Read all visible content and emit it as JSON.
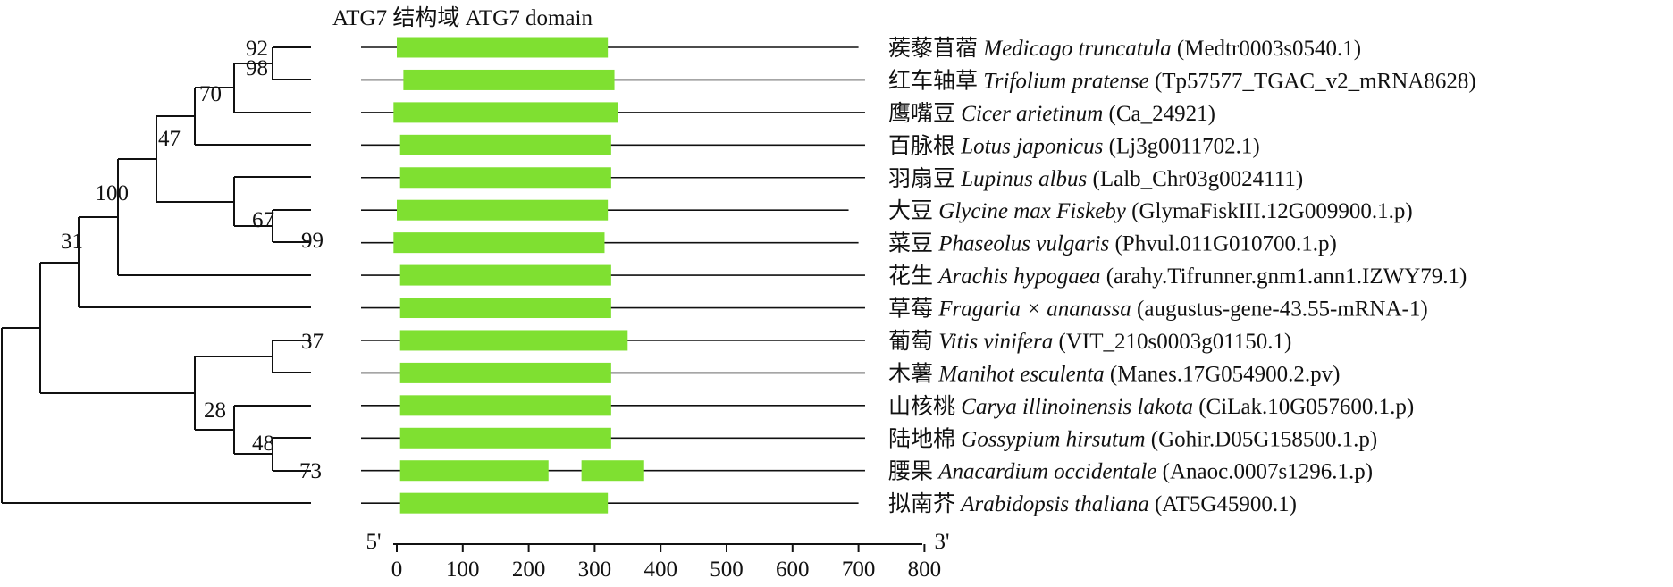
{
  "domain_title": "ATG7 结构域 ATG7 domain",
  "domain_color": "#7FE031",
  "axis": {
    "start_label": "5'",
    "end_label": "3'",
    "ticks": [
      "0",
      "100",
      "200",
      "300",
      "400",
      "500",
      "600",
      "700",
      "800"
    ]
  },
  "species": [
    {
      "cn": "蒺藜苜蓿",
      "latin": "Medicago truncatula",
      "gene": "(Medtr0003s0540.1)",
      "length": 700,
      "domains": [
        [
          0,
          320
        ]
      ]
    },
    {
      "cn": "红车轴草",
      "latin": "Trifolium pratense",
      "gene": "(Tp57577_TGAC_v2_mRNA8628)",
      "length": 710,
      "domains": [
        [
          10,
          330
        ]
      ]
    },
    {
      "cn": "鹰嘴豆",
      "latin": "Cicer arietinum",
      "gene": "(Ca_24921)",
      "length": 710,
      "domains": [
        [
          -5,
          335
        ]
      ]
    },
    {
      "cn": "百脉根",
      "latin": "Lotus japonicus",
      "gene": "(Lj3g0011702.1)",
      "length": 710,
      "domains": [
        [
          5,
          325
        ]
      ]
    },
    {
      "cn": "羽扇豆",
      "latin": "Lupinus albus",
      "gene": "(Lalb_Chr03g0024111)",
      "length": 710,
      "domains": [
        [
          5,
          325
        ]
      ]
    },
    {
      "cn": "大豆",
      "latin": "Glycine max Fiskeby",
      "gene": "(GlymaFiskIII.12G009900.1.p)",
      "length": 685,
      "domains": [
        [
          0,
          320
        ]
      ]
    },
    {
      "cn": "菜豆",
      "latin": "Phaseolus vulgaris",
      "gene": "(Phvul.011G010700.1.p)",
      "length": 700,
      "domains": [
        [
          -5,
          315
        ]
      ]
    },
    {
      "cn": "花生",
      "latin": "Arachis hypogaea",
      "gene": "(arahy.Tifrunner.gnm1.ann1.IZWY79.1)",
      "length": 710,
      "domains": [
        [
          5,
          325
        ]
      ]
    },
    {
      "cn": "草莓",
      "latin": "Fragaria × ananassa",
      "gene": "(augustus-gene-43.55-mRNA-1)",
      "length": 710,
      "domains": [
        [
          5,
          325
        ]
      ]
    },
    {
      "cn": "葡萄",
      "latin": "Vitis vinifera",
      "gene": "(VIT_210s0003g01150.1)",
      "length": 710,
      "domains": [
        [
          5,
          350
        ]
      ]
    },
    {
      "cn": "木薯",
      "latin": "Manihot esculenta",
      "gene": "(Manes.17G054900.2.pv)",
      "length": 710,
      "domains": [
        [
          5,
          325
        ]
      ]
    },
    {
      "cn": "山核桃",
      "latin": "Carya illinoinensis lakota",
      "gene": "(CiLak.10G057600.1.p)",
      "length": 710,
      "domains": [
        [
          5,
          325
        ]
      ]
    },
    {
      "cn": "陆地棉",
      "latin": "Gossypium hirsutum",
      "gene": "(Gohir.D05G158500.1.p)",
      "length": 710,
      "domains": [
        [
          5,
          325
        ]
      ]
    },
    {
      "cn": "腰果",
      "latin": "Anacardium occidentale",
      "gene": "(Anaoc.0007s1296.1.p)",
      "length": 710,
      "domains": [
        [
          5,
          230
        ],
        [
          280,
          375
        ]
      ]
    },
    {
      "cn": "拟南芥",
      "latin": "Arabidopsis thaliana",
      "gene": "(AT5G45900.1)",
      "length": 700,
      "domains": [
        [
          5,
          320
        ]
      ]
    }
  ],
  "bootstrap": [
    "92",
    "98",
    "70",
    "47",
    "100",
    "31",
    "67",
    "99",
    "37",
    "28",
    "48",
    "73"
  ]
}
